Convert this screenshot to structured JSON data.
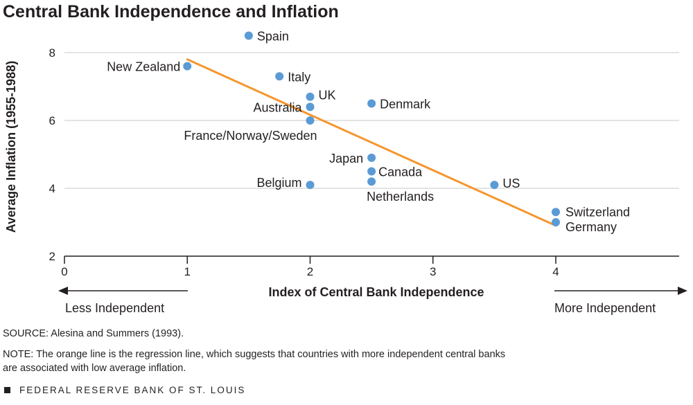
{
  "chart_data": {
    "type": "scatter",
    "title": "Central Bank Independence and Inflation",
    "xlabel": "Index of Central Bank Independence",
    "ylabel": "Average Inflation (1955-1988)",
    "xlim": [
      0,
      5
    ],
    "ylim": [
      2,
      9
    ],
    "x_ticks": [
      "0",
      "1",
      "2",
      "3",
      "4"
    ],
    "y_ticks": [
      "2",
      "4",
      "6",
      "8"
    ],
    "grid": "horizontal",
    "point_color": "#5b9bd5",
    "line_color": "#f5962d",
    "points": [
      {
        "label": "Spain",
        "x": 1.5,
        "y": 8.5
      },
      {
        "label": "New Zealand",
        "x": 1.0,
        "y": 7.6
      },
      {
        "label": "Italy",
        "x": 1.75,
        "y": 7.3
      },
      {
        "label": "UK",
        "x": 2.0,
        "y": 6.7
      },
      {
        "label": "Denmark",
        "x": 2.5,
        "y": 6.5
      },
      {
        "label": "Australia",
        "x": 2.0,
        "y": 6.4
      },
      {
        "label": "France/Norway/Sweden",
        "x": 2.0,
        "y": 6.0
      },
      {
        "label": "Japan",
        "x": 2.5,
        "y": 4.9
      },
      {
        "label": "Canada",
        "x": 2.5,
        "y": 4.5
      },
      {
        "label": "Netherlands",
        "x": 2.5,
        "y": 4.2
      },
      {
        "label": "Belgium",
        "x": 2.0,
        "y": 4.1
      },
      {
        "label": "US",
        "x": 3.5,
        "y": 4.1
      },
      {
        "label": "Switzerland",
        "x": 4.0,
        "y": 3.3
      },
      {
        "label": "Germany",
        "x": 4.0,
        "y": 3.0
      }
    ],
    "regression_line": {
      "x": [
        1,
        4
      ],
      "y": [
        7.8,
        2.9
      ]
    },
    "direction_labels": {
      "left": "Less Independent",
      "right": "More Independent"
    }
  },
  "source": "SOURCE: Alesina and Summers (1993).",
  "note_line1": "NOTE: The orange line is the regression line, which suggests that countries with more independent central banks",
  "note_line2": "are associated with low average inflation.",
  "footer": "FEDERAL RESERVE BANK OF ST. LOUIS"
}
